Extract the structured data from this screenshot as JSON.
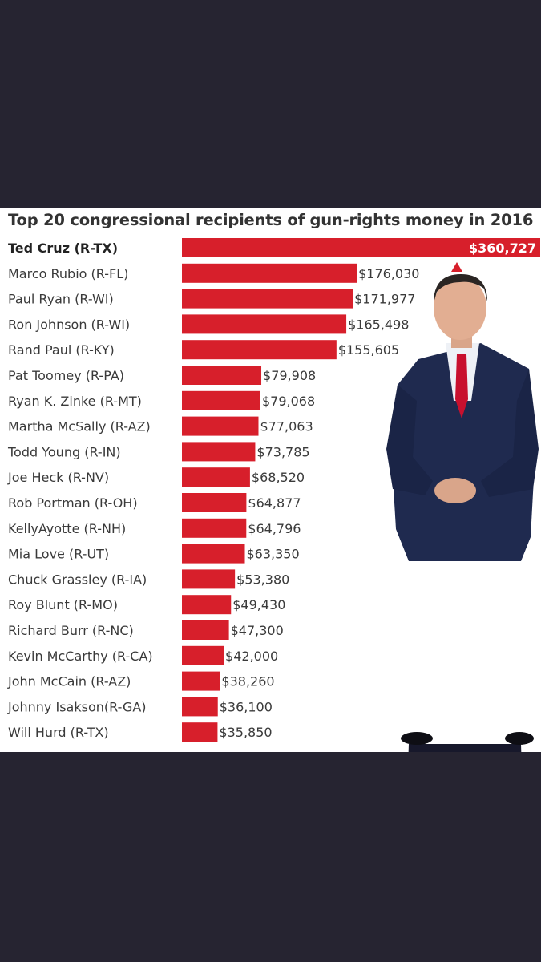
{
  "colors": {
    "page_bg": "#262431",
    "panel_bg": "#ffffff",
    "bar": "#d71f2b",
    "text": "#3a3a3a",
    "suit": "#1f2a4f",
    "tie": "#c8102e"
  },
  "chart_data": {
    "type": "bar",
    "orientation": "horizontal",
    "title": "Top 20 congressional recipients of gun-rights money in 2016",
    "xlabel": "",
    "ylabel": "",
    "xlim": [
      0,
      360727
    ],
    "grid": false,
    "categories": [
      "Ted Cruz (R-TX)",
      "Marco Rubio (R-FL)",
      "Paul Ryan (R-WI)",
      "Ron Johnson (R-WI)",
      "Rand Paul (R-KY)",
      "Pat Toomey (R-PA)",
      "Ryan K. Zinke (R-MT)",
      "Martha McSally (R-AZ)",
      "Todd Young (R-IN)",
      "Joe Heck (R-NV)",
      "Rob Portman (R-OH)",
      "KellyAyotte (R-NH)",
      "Mia Love (R-UT)",
      "Chuck Grassley (R-IA)",
      "Roy Blunt (R-MO)",
      "Richard Burr (R-NC)",
      "Kevin McCarthy (R-CA)",
      "John McCain (R-AZ)",
      "Johnny  Isakson(R-GA)",
      "Will Hurd (R-TX)"
    ],
    "values": [
      360727,
      176030,
      171977,
      165498,
      155605,
      79908,
      79068,
      77063,
      73785,
      68520,
      64877,
      64796,
      63350,
      53380,
      49430,
      47300,
      42000,
      38260,
      36100,
      35850
    ],
    "value_labels": [
      "$360,727",
      "$176,030",
      "$171,977",
      "$165,498",
      "$155,605",
      "$79,908",
      "$79,068",
      "$77,063",
      "$73,785",
      "$68,520",
      "$64,877",
      "$64,796",
      "$63,350",
      "$53,380",
      "$49,430",
      "$47,300",
      "$42,000",
      "$38,260",
      "$36,100",
      "$35,850"
    ]
  },
  "photo": {
    "subject": "man in dark suit with red tie",
    "icon": "person-photo-icon"
  }
}
